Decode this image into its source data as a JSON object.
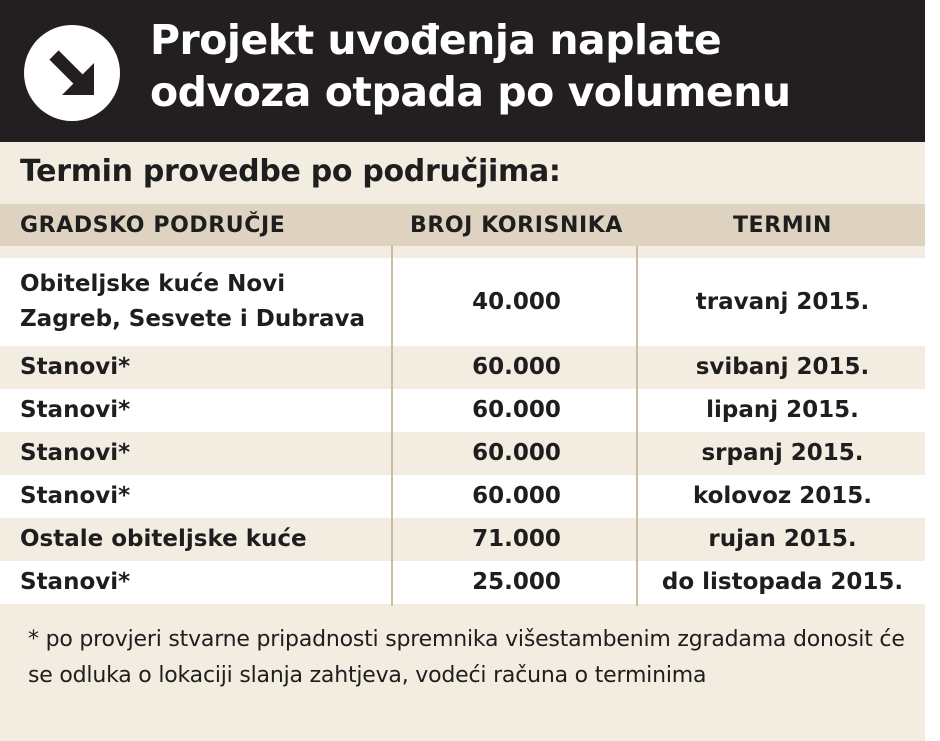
{
  "header": {
    "title_line1": "Projekt uvođenja naplate",
    "title_line2": "odvoza otpada po volumenu",
    "icon": "arrow-down-right-icon"
  },
  "subtitle": "Termin provedbe po područjima:",
  "table": {
    "columns": [
      "GRADSKO PODRUČJE",
      "BROJ KORISNIKA",
      "TERMIN"
    ],
    "rows": [
      {
        "area": "Obiteljske kuće Novi Zagreb, Sesvete i Dubrava",
        "users": "40.000",
        "term": "travanj 2015."
      },
      {
        "area": "Stanovi*",
        "users": "60.000",
        "term": "svibanj 2015."
      },
      {
        "area": "Stanovi*",
        "users": "60.000",
        "term": "lipanj 2015."
      },
      {
        "area": "Stanovi*",
        "users": "60.000",
        "term": "srpanj 2015."
      },
      {
        "area": "Stanovi*",
        "users": "60.000",
        "term": "kolovoz 2015."
      },
      {
        "area": "Ostale obiteljske kuće",
        "users": "71.000",
        "term": "rujan 2015."
      },
      {
        "area": "Stanovi*",
        "users": "25.000",
        "term": "do listopada 2015."
      }
    ]
  },
  "footnote": "* po provjeri stvarne pripadnosti spremnika višestambenim zgradama donosit će se odluka o lokaciji slanja zahtjeva, vodeći računa o terminima",
  "colors": {
    "header_bg": "#231f20",
    "panel_bg": "#f2ece1",
    "column_header_bg": "#ddd3c0",
    "alt_row_bg": "#ffffff"
  }
}
